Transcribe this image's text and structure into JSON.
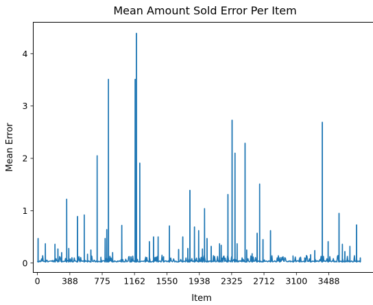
{
  "chart_data": {
    "type": "line",
    "title": "Mean Amount Sold Error Per Item",
    "xlabel": "Item",
    "ylabel": "Mean Error",
    "xlim": [
      -50,
      4070
    ],
    "ylim": [
      -0.18,
      4.6
    ],
    "x_ticks": [
      0,
      388,
      775,
      1162,
      1550,
      1938,
      2325,
      2712,
      3100,
      3488
    ],
    "x_tick_labels": [
      "0",
      "388",
      "775",
      "1162",
      "1550",
      "1938",
      "2325",
      "2712",
      "3100",
      "3488"
    ],
    "y_ticks": [
      0,
      1,
      2,
      3,
      4
    ],
    "y_tick_labels": [
      "0",
      "1",
      "2",
      "3",
      "4"
    ],
    "grid": false,
    "line_color": "#1f77b4",
    "baseline": 0.02,
    "x_max": 3870,
    "series": [
      {
        "spikes": [
          {
            "x": 8,
            "y": 0.47
          },
          {
            "x": 95,
            "y": 0.37
          },
          {
            "x": 210,
            "y": 0.36
          },
          {
            "x": 245,
            "y": 0.27
          },
          {
            "x": 290,
            "y": 0.2
          },
          {
            "x": 350,
            "y": 1.22
          },
          {
            "x": 375,
            "y": 0.28
          },
          {
            "x": 480,
            "y": 0.89
          },
          {
            "x": 560,
            "y": 0.92
          },
          {
            "x": 600,
            "y": 0.17
          },
          {
            "x": 640,
            "y": 0.25
          },
          {
            "x": 715,
            "y": 2.05
          },
          {
            "x": 760,
            "y": 0.11
          },
          {
            "x": 810,
            "y": 0.47
          },
          {
            "x": 830,
            "y": 0.64
          },
          {
            "x": 850,
            "y": 3.51
          },
          {
            "x": 900,
            "y": 0.2
          },
          {
            "x": 1010,
            "y": 0.72
          },
          {
            "x": 1120,
            "y": 0.12
          },
          {
            "x": 1170,
            "y": 3.51
          },
          {
            "x": 1185,
            "y": 4.39
          },
          {
            "x": 1225,
            "y": 1.91
          },
          {
            "x": 1290,
            "y": 0.08
          },
          {
            "x": 1340,
            "y": 0.41
          },
          {
            "x": 1390,
            "y": 0.5
          },
          {
            "x": 1445,
            "y": 0.5
          },
          {
            "x": 1510,
            "y": 0.12
          },
          {
            "x": 1580,
            "y": 0.71
          },
          {
            "x": 1690,
            "y": 0.26
          },
          {
            "x": 1740,
            "y": 0.5
          },
          {
            "x": 1800,
            "y": 0.28
          },
          {
            "x": 1825,
            "y": 1.39
          },
          {
            "x": 1880,
            "y": 0.69
          },
          {
            "x": 1930,
            "y": 0.62
          },
          {
            "x": 1975,
            "y": 0.27
          },
          {
            "x": 2000,
            "y": 1.04
          },
          {
            "x": 2030,
            "y": 0.47
          },
          {
            "x": 2080,
            "y": 0.32
          },
          {
            "x": 2180,
            "y": 0.37
          },
          {
            "x": 2200,
            "y": 0.34
          },
          {
            "x": 2280,
            "y": 1.31
          },
          {
            "x": 2330,
            "y": 2.73
          },
          {
            "x": 2365,
            "y": 2.1
          },
          {
            "x": 2390,
            "y": 0.37
          },
          {
            "x": 2485,
            "y": 2.29
          },
          {
            "x": 2505,
            "y": 0.25
          },
          {
            "x": 2570,
            "y": 0.18
          },
          {
            "x": 2630,
            "y": 0.57
          },
          {
            "x": 2660,
            "y": 1.51
          },
          {
            "x": 2700,
            "y": 0.45
          },
          {
            "x": 2790,
            "y": 0.62
          },
          {
            "x": 2900,
            "y": 0.08
          },
          {
            "x": 3060,
            "y": 0.11
          },
          {
            "x": 3140,
            "y": 0.1
          },
          {
            "x": 3200,
            "y": 0.1
          },
          {
            "x": 3270,
            "y": 0.16
          },
          {
            "x": 3320,
            "y": 0.24
          },
          {
            "x": 3410,
            "y": 2.69
          },
          {
            "x": 3480,
            "y": 0.41
          },
          {
            "x": 3610,
            "y": 0.95
          },
          {
            "x": 3650,
            "y": 0.36
          },
          {
            "x": 3680,
            "y": 0.22
          },
          {
            "x": 3740,
            "y": 0.32
          },
          {
            "x": 3820,
            "y": 0.73
          },
          {
            "x": 3865,
            "y": 0.1
          }
        ]
      }
    ]
  }
}
